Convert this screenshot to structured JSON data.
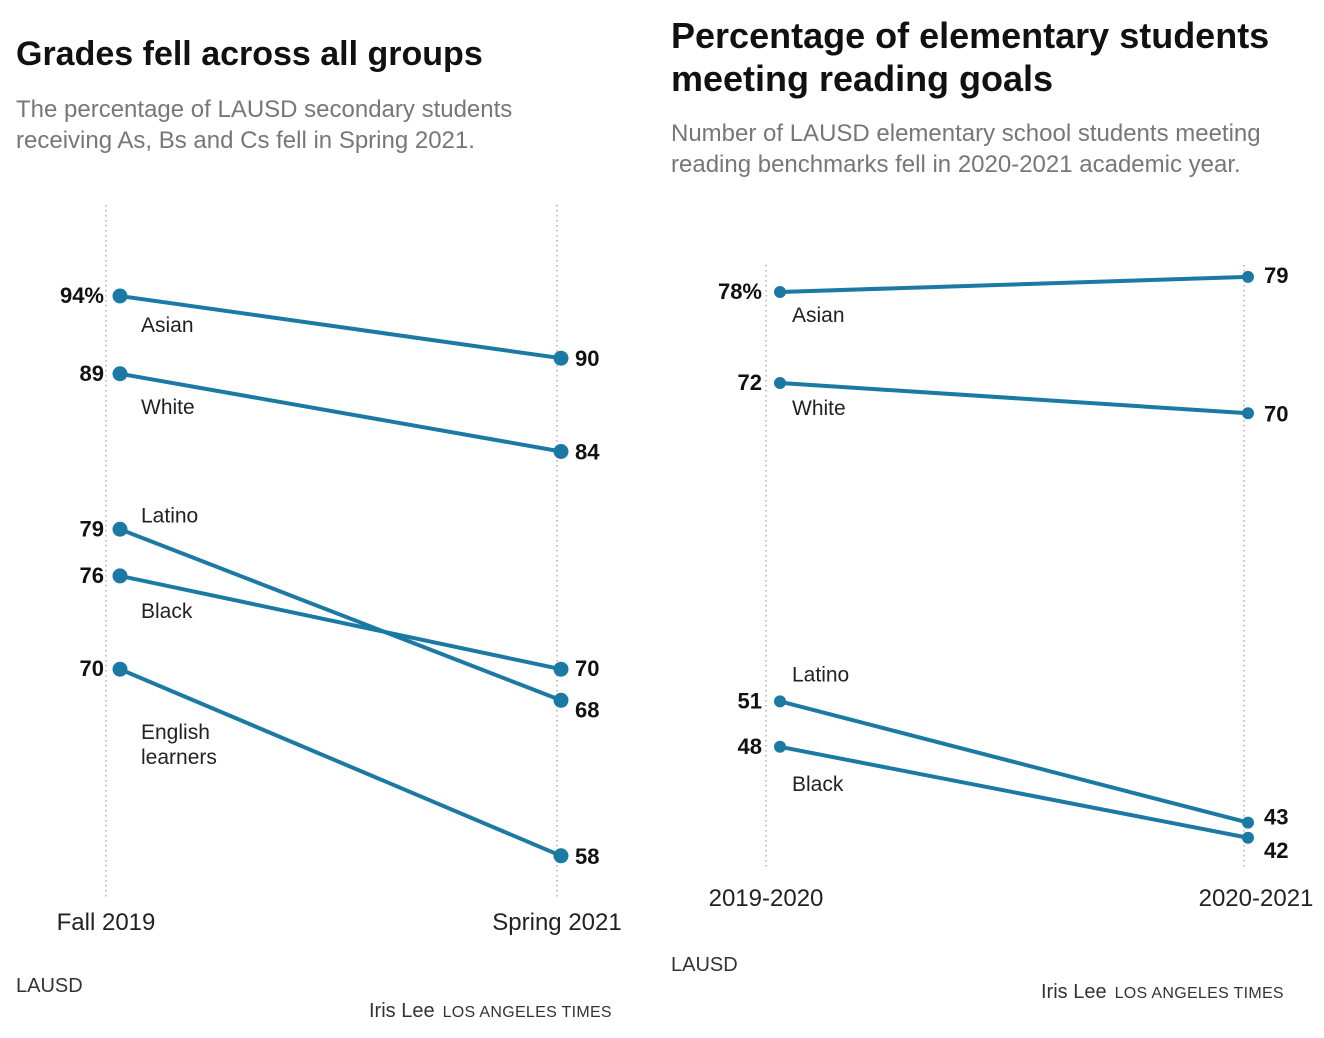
{
  "charts": [
    {
      "title": "Grades fell across all groups",
      "subtitle": "The percentage of LAUSD secondary students receiving As, Bs and Cs fell in Spring 2021.",
      "source": "LAUSD",
      "credit": {
        "author": "Iris Lee",
        "org": "LOS ANGELES TIMES"
      }
    },
    {
      "title": "Percentage of elementary students meeting reading goals",
      "subtitle": "Number of LAUSD elementary school students meeting reading benchmarks fell in 2020-2021 academic year.",
      "source": "LAUSD",
      "credit": {
        "author": "Iris Lee",
        "org": "LOS ANGELES TIMES"
      }
    }
  ],
  "chart_data": [
    {
      "type": "line",
      "chart_kind": "slope",
      "categories": [
        "Fall 2019",
        "Spring 2021"
      ],
      "unit": "%",
      "line_color": "#1a7aa3",
      "series": [
        {
          "name": "Asian",
          "values": [
            94,
            90
          ],
          "start_label": "94%",
          "end_label": "90"
        },
        {
          "name": "White",
          "values": [
            89,
            84
          ],
          "start_label": "89",
          "end_label": "84"
        },
        {
          "name": "Latino",
          "values": [
            79,
            68
          ],
          "start_label": "79",
          "end_label": "68"
        },
        {
          "name": "Black",
          "values": [
            76,
            70
          ],
          "start_label": "76",
          "end_label": "70"
        },
        {
          "name": "English learners",
          "name_lines": [
            "English",
            "learners"
          ],
          "values": [
            70,
            58
          ],
          "start_label": "70",
          "end_label": "58"
        }
      ]
    },
    {
      "type": "line",
      "chart_kind": "slope",
      "categories": [
        "2019-2020",
        "2020-2021"
      ],
      "unit": "%",
      "line_color": "#1a7aa3",
      "series": [
        {
          "name": "Asian",
          "values": [
            78,
            79
          ],
          "start_label": "78%",
          "end_label": "79"
        },
        {
          "name": "White",
          "values": [
            72,
            70
          ],
          "start_label": "72",
          "end_label": "70"
        },
        {
          "name": "Latino",
          "values": [
            51,
            43
          ],
          "start_label": "51",
          "end_label": "43"
        },
        {
          "name": "Black",
          "values": [
            48,
            42
          ],
          "start_label": "48",
          "end_label": "42"
        }
      ]
    }
  ]
}
